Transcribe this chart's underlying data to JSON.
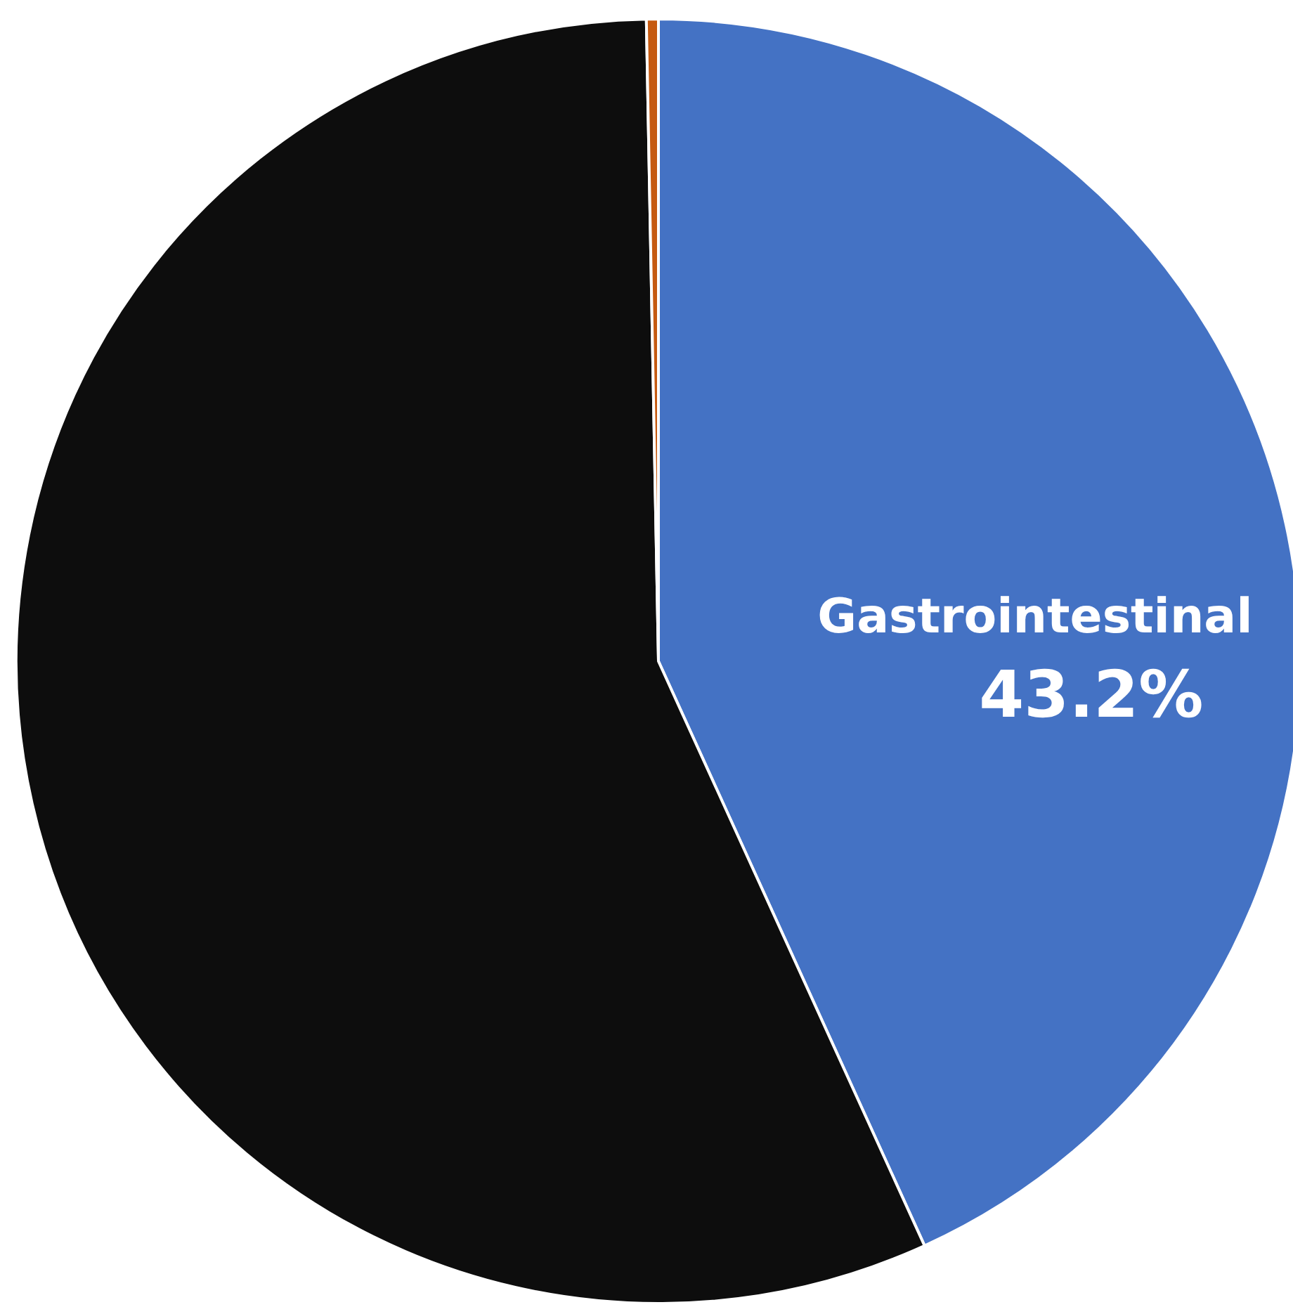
{
  "chart_data": {
    "type": "pie",
    "categories": [
      "Gastrointestinal",
      null,
      null
    ],
    "values": [
      43.2,
      56.5,
      0.3
    ],
    "colors": [
      "#4472c4",
      "#0d0d0d",
      "#c55a11"
    ],
    "value_labels": [
      "43.2%",
      null,
      null
    ]
  }
}
